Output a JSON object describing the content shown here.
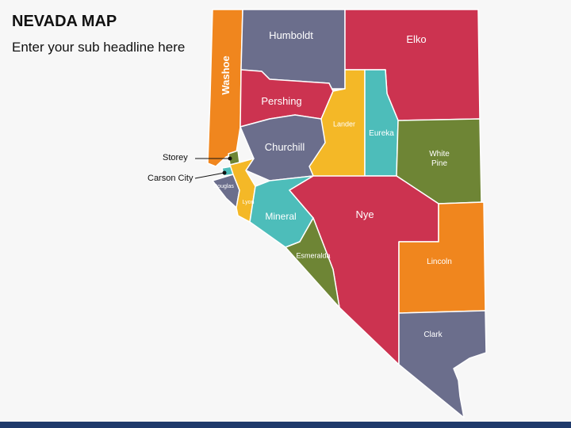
{
  "header": {
    "title": "NEVADA MAP",
    "subtitle": "Enter your sub headline here"
  },
  "counties": [
    {
      "name": "Humboldt"
    },
    {
      "name": "Elko"
    },
    {
      "name": "Washoe"
    },
    {
      "name": "Pershing"
    },
    {
      "name": "Lander"
    },
    {
      "name": "Eureka"
    },
    {
      "name": "Churchill"
    },
    {
      "name": "White Pine"
    },
    {
      "name": "Douglas"
    },
    {
      "name": "Lyon"
    },
    {
      "name": "Mineral"
    },
    {
      "name": "Nye"
    },
    {
      "name": "Esmeralda"
    },
    {
      "name": "Lincoln"
    },
    {
      "name": "Clark"
    }
  ],
  "callouts": [
    {
      "name": "Storey"
    },
    {
      "name": "Carson City"
    }
  ]
}
